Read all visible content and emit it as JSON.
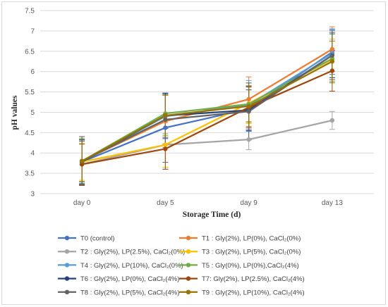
{
  "chart_data": {
    "type": "line",
    "title": "",
    "xlabel": "Storage Time (d)",
    "ylabel": "pH values",
    "categories": [
      "day 0",
      "day 5",
      "day 9",
      "day 13"
    ],
    "ylim": [
      3,
      7.5
    ],
    "yticks": [
      "3",
      "3.5",
      "4",
      "4.5",
      "5",
      "5.5",
      "6",
      "6.5",
      "7",
      "7.5"
    ],
    "grid": "horizontal",
    "legend_position": "bottom",
    "series": [
      {
        "name": "T0 (control)",
        "color": "#4472c4",
        "values": [
          3.78,
          4.62,
          5.08,
          6.48
        ],
        "error": [
          0.55,
          0.85,
          0.55,
          0.55
        ]
      },
      {
        "name": "T1 : Gly(2%), LP(0%), CaCl₂(0%)",
        "color": "#ed7d31",
        "values": [
          3.8,
          4.78,
          5.32,
          6.55
        ],
        "error": [
          0.6,
          0.65,
          0.55,
          0.55
        ]
      },
      {
        "name": "T2 : Gly(2%), LP(2.5%), CaCl₂(0%)",
        "color": "#a5a5a5",
        "values": [
          3.72,
          4.2,
          4.33,
          4.8
        ],
        "error": [
          0.5,
          0.6,
          0.25,
          0.22
        ]
      },
      {
        "name": "T3 : Gly(2%), LP(5%), CaCl₂(0%)",
        "color": "#ffc000",
        "values": [
          3.78,
          4.2,
          5.22,
          6.3
        ],
        "error": [
          0.45,
          0.55,
          0.5,
          0.5
        ]
      },
      {
        "name": "T4 : Gly(2%), LP(10%), CaCl₂(0%)",
        "color": "#5b9bd5",
        "values": [
          3.78,
          4.9,
          5.18,
          6.45
        ],
        "error": [
          0.5,
          0.55,
          0.6,
          0.6
        ]
      },
      {
        "name": "T5 : Gly(0%), LP(0%),CaCl₂(4%)",
        "color": "#70ad47",
        "values": [
          3.8,
          4.97,
          5.2,
          6.32
        ],
        "error": [
          0.55,
          0.5,
          0.45,
          0.6
        ]
      },
      {
        "name": "T6 : Gly(2%), LP(0%), CaCl₂(4%)",
        "color": "#264478",
        "values": [
          3.78,
          4.92,
          5.05,
          6.4
        ],
        "error": [
          0.55,
          0.55,
          0.5,
          0.55
        ]
      },
      {
        "name": "T7: Gly(2%), LP(2.5%), CaCl₂(4%)",
        "color": "#9e480e",
        "values": [
          3.72,
          4.1,
          5.12,
          6.02
        ],
        "error": [
          0.5,
          0.5,
          0.5,
          0.5
        ]
      },
      {
        "name": "T8 : Gly(2%), LP(5%), CaCl₂(4%)",
        "color": "#636363",
        "values": [
          3.8,
          4.82,
          5.02,
          6.4
        ],
        "error": [
          0.6,
          0.6,
          0.7,
          0.6
        ]
      },
      {
        "name": "T9 : Gly(2%), LP(10%), CaCl₂(4%)",
        "color": "#997300",
        "values": [
          3.8,
          4.92,
          5.15,
          6.25
        ],
        "error": [
          0.5,
          0.5,
          0.5,
          0.5
        ]
      }
    ]
  }
}
